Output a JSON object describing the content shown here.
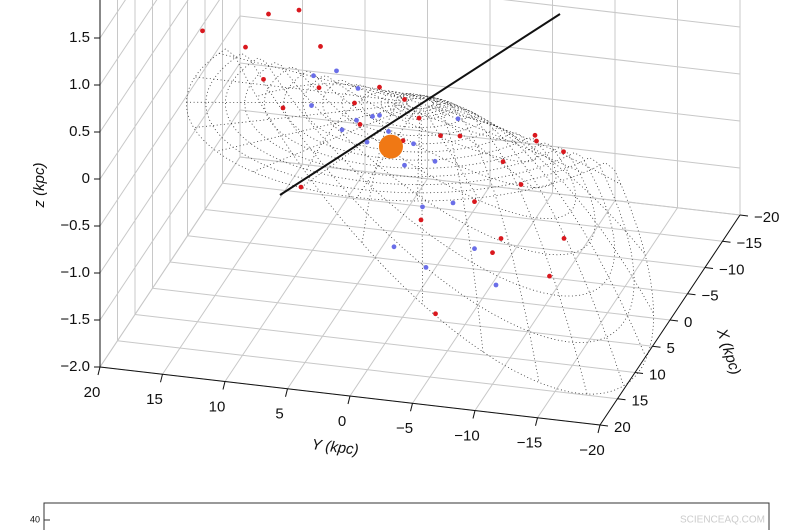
{
  "chart_data": [
    {
      "type": "scatter3d",
      "x_label": "X (kpc)",
      "y_label": "Y (kpc)",
      "z_label": "z (kpc)",
      "xlim": [
        -20,
        20
      ],
      "ylim": [
        -20,
        20
      ],
      "zlim": [
        -2,
        2
      ],
      "xticks": [
        {
          "value": -20,
          "label": "−20"
        },
        {
          "value": -15,
          "label": "−15"
        },
        {
          "value": -10,
          "label": "−10"
        },
        {
          "value": -5,
          "label": "−5"
        },
        0,
        5,
        10,
        15,
        20
      ],
      "yticks": [
        20,
        15,
        10,
        5,
        0,
        {
          "value": -5,
          "label": "−5"
        },
        {
          "value": -10,
          "label": "−10"
        },
        {
          "value": -15,
          "label": "−15"
        },
        {
          "value": -20,
          "label": "−20"
        }
      ],
      "zticks": [
        {
          "value": -2,
          "label": "−2.0"
        },
        {
          "value": -1.5,
          "label": "−1.5"
        },
        {
          "value": -1,
          "label": "−1.0"
        },
        {
          "value": -0.5,
          "label": "−0.5"
        },
        0,
        0.5,
        {
          "value": 1,
          "label": "1.0"
        },
        1.5
      ],
      "grid": true,
      "series": [
        {
          "color": "#d9181e",
          "size": 2.4,
          "x": [
            9,
            7,
            10,
            12,
            6,
            8,
            14,
            11,
            5,
            13,
            9,
            7,
            16,
            10,
            8,
            4,
            12,
            15,
            6,
            9,
            11,
            3,
            13,
            10,
            7,
            17,
            8,
            12,
            5,
            14,
            9,
            6
          ],
          "y": [
            10,
            12,
            -6,
            -10,
            8,
            3,
            -12,
            -3,
            14,
            -8,
            -14,
            6,
            -16,
            2,
            -1,
            11,
            -5,
            -10,
            15,
            -9,
            5,
            13,
            -14,
            -12,
            9,
            -6,
            1,
            -2,
            16,
            -4,
            7,
            -11
          ],
          "z": [
            0.6,
            0.8,
            0.3,
            0.2,
            1.2,
            0.4,
            0.1,
            0.5,
            1.4,
            -0.2,
            0.2,
            0.9,
            -0.3,
            0.3,
            0.5,
            1.0,
            0.4,
            -0.6,
            1.6,
            -0.8,
            0.7,
            1.1,
            -0.9,
            0.4,
            0.2,
            -1.2,
            0.6,
            0.3,
            0.8,
            -0.4,
            -0.5,
            0.1
          ]
        },
        {
          "color": "#6a6ee8",
          "size": 2.4,
          "x": [
            8,
            9,
            7,
            10,
            8,
            11,
            6,
            9,
            12,
            8,
            10,
            7,
            9,
            13,
            8,
            11,
            6,
            9,
            14,
            10
          ],
          "y": [
            1,
            -2,
            3,
            -4,
            -1,
            2,
            5,
            0,
            -6,
            4,
            -3,
            -5,
            6,
            -8,
            2,
            -1,
            7,
            -3,
            -10,
            1
          ],
          "z": [
            0.3,
            0.1,
            0.5,
            0.0,
            -0.2,
            0.4,
            0.6,
            0.2,
            -0.3,
            0.1,
            -0.5,
            0.3,
            0.7,
            -0.7,
            0.0,
            -0.9,
            0.2,
            -1.2,
            -1.0,
            0.4
          ]
        },
        {
          "color": "#f07814",
          "size": 12,
          "x": [
            8.3
          ],
          "y": [
            0
          ],
          "z": [
            0
          ]
        }
      ]
    },
    {
      "type": "scatter",
      "ylim": [
        0,
        45
      ],
      "yticks": [
        40
      ]
    }
  ],
  "watermark": "SCIENCEAQ.COM"
}
